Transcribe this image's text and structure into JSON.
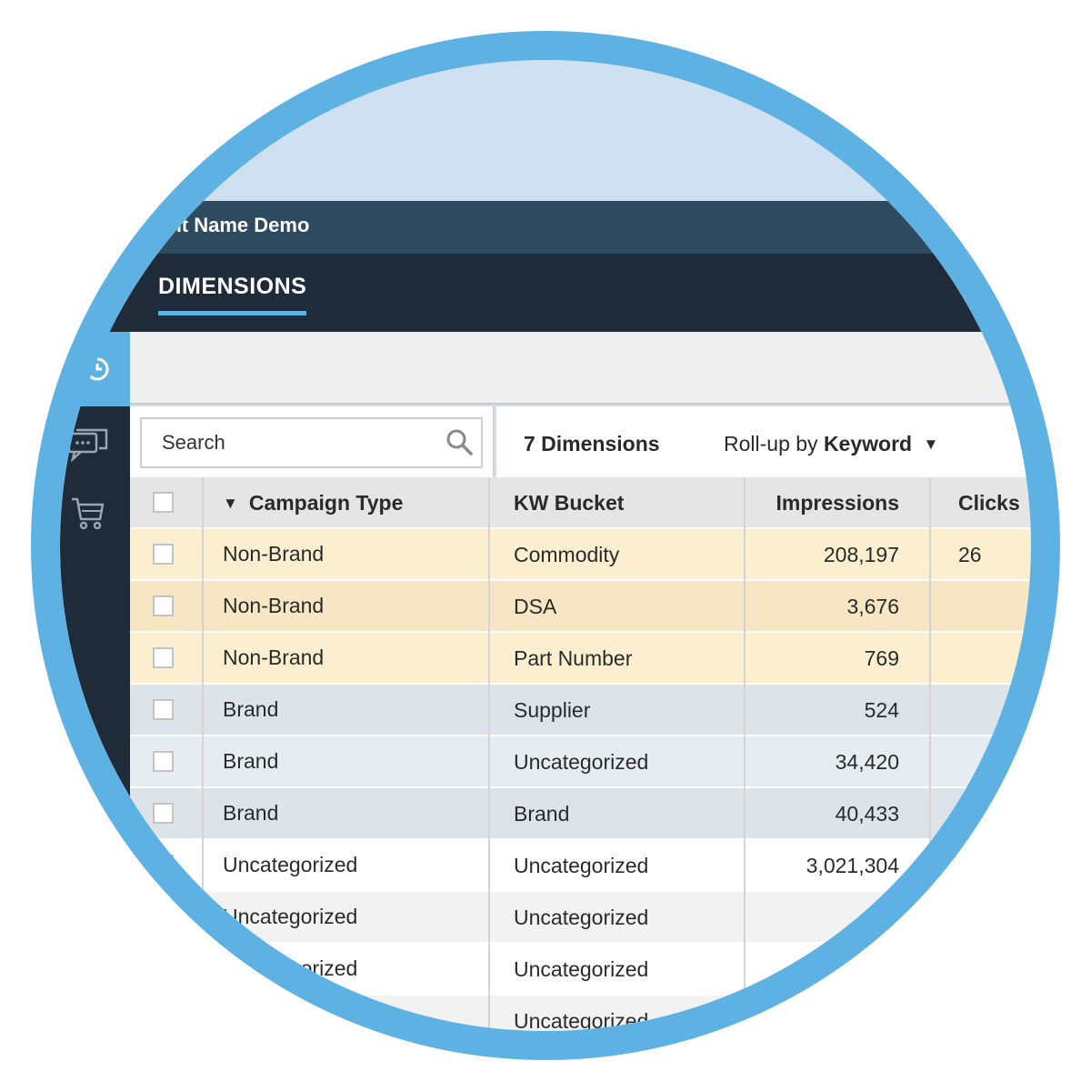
{
  "header": {
    "client_name": "ient Name Demo"
  },
  "nav": {
    "active_tab": "DIMENSIONS"
  },
  "sidebar": {
    "items": [
      {
        "icon": "clock-icon"
      },
      {
        "icon": "chat-icon"
      },
      {
        "icon": "cart-icon"
      }
    ]
  },
  "search": {
    "placeholder": "Search"
  },
  "toolbar": {
    "dimension_count": "7 Dimensions",
    "rollup_prefix": "Roll-up by",
    "rollup_value": "Keyword",
    "rollup_arrow": "▼"
  },
  "table": {
    "sort_indicator": "▼",
    "columns": [
      "Campaign Type",
      "KW Bucket",
      "Impressions",
      "Clicks"
    ],
    "rows": [
      {
        "campaign_type": "Non-Brand",
        "kw_bucket": "Commodity",
        "impressions": "208,197",
        "clicks": "26",
        "bg": "#fcefcf"
      },
      {
        "campaign_type": "Non-Brand",
        "kw_bucket": "DSA",
        "impressions": "3,676",
        "clicks": "",
        "bg": "#f6e6c4"
      },
      {
        "campaign_type": "Non-Brand",
        "kw_bucket": "Part Number",
        "impressions": "769",
        "clicks": "",
        "bg": "#fcefcf"
      },
      {
        "campaign_type": "Brand",
        "kw_bucket": "Supplier",
        "impressions": "524",
        "clicks": "",
        "bg": "#dce3e9"
      },
      {
        "campaign_type": "Brand",
        "kw_bucket": "Uncategorized",
        "impressions": "34,420",
        "clicks": "",
        "bg": "#e6edf2"
      },
      {
        "campaign_type": "Brand",
        "kw_bucket": "Brand",
        "impressions": "40,433",
        "clicks": "",
        "bg": "#dce3e9"
      },
      {
        "campaign_type": "Uncategorized",
        "kw_bucket": "Uncategorized",
        "impressions": "3,021,304",
        "clicks": "",
        "bg": "#ffffff"
      },
      {
        "campaign_type": "Uncategorized",
        "kw_bucket": "Uncategorized",
        "impressions": "",
        "clicks": "",
        "bg": "#f2f2f2"
      },
      {
        "campaign_type": "Uncategorized",
        "kw_bucket": "Uncategorized",
        "impressions": "",
        "clicks": "",
        "bg": "#ffffff"
      },
      {
        "campaign_type": "",
        "kw_bucket": "Uncategorized",
        "impressions": "",
        "clicks": "",
        "bg": "#f2f2f2"
      }
    ]
  },
  "colors": {
    "accent": "#5eb2e3",
    "nav_bg": "#1f2b39",
    "top_bar_bg": "#2d4a5e",
    "page_bg": "#cfe0f2"
  }
}
